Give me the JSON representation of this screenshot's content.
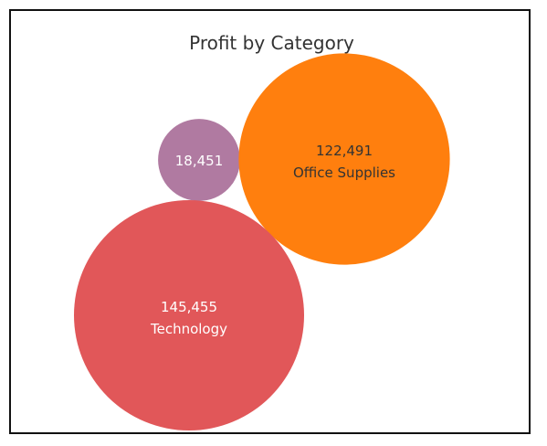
{
  "chart_data": {
    "type": "bubble",
    "title": "Profit by Category",
    "points": [
      {
        "category": "",
        "value": 18451,
        "label": "18,451",
        "color": "#b07aa1",
        "text_color": "#ffffff"
      },
      {
        "category": "Office Supplies",
        "value": 122491,
        "label": "122,491",
        "color": "#ff7f0e",
        "text_color": "#333333"
      },
      {
        "category": "Technology",
        "value": 145455,
        "label": "145,455",
        "color": "#e15759",
        "text_color": "#ffffff"
      }
    ]
  }
}
